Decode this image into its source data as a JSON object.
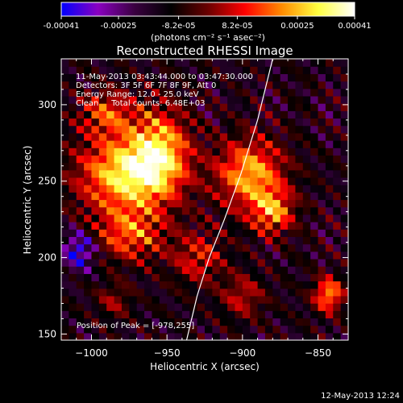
{
  "chart_data": {
    "type": "heatmap",
    "title": "Reconstructed RHESSI Image",
    "colorbar": {
      "min": -0.00041,
      "max": 0.00041,
      "tick_labels": [
        "-0.00041",
        "-0.00025",
        "-8.2e-05",
        "8.2e-05",
        "0.00025",
        "0.00041"
      ],
      "tick_values": [
        -0.00041,
        -0.00025,
        -8.2e-05,
        8.2e-05,
        0.00025,
        0.00041
      ],
      "units_label": "(photons cm⁻² s⁻¹ asec⁻²)",
      "colormap": [
        "#0000ff",
        "#8a00c0",
        "#3a0040",
        "#000000",
        "#6a0000",
        "#ff0000",
        "#ff8a00",
        "#ffff40",
        "#ffffff"
      ]
    },
    "annotations": [
      "11-May-2013 03:43:44.000 to 03:47:30.000",
      "Detectors: 3F 5F 6F 7F 8F 9F, Att 0",
      "Energy Range: 12.0 - 25.0 keV",
      "Clean     Total counts: 6.48E+03"
    ],
    "peak_label": "Position of Peak = [-978,255]",
    "xlabel": "Heliocentric X (arcsec)",
    "ylabel": "Heliocentric Y (arcsec)",
    "xlim": [
      -1020,
      -830
    ],
    "ylim": [
      146,
      330
    ],
    "xticks": [
      -1000,
      -950,
      -900,
      -850
    ],
    "yticks": [
      150,
      200,
      250,
      300
    ],
    "grid": false,
    "limb_line": {
      "color": "#ffffff",
      "points": [
        [
          -937,
          146
        ],
        [
          -930,
          175
        ],
        [
          -922,
          200
        ],
        [
          -912,
          225
        ],
        [
          -901,
          255
        ],
        [
          -890,
          290
        ],
        [
          -880,
          330
        ]
      ]
    },
    "sources": [
      {
        "x": -978,
        "y": 255,
        "amp": 0.00041,
        "sx": 22,
        "sy": 18
      },
      {
        "x": -955,
        "y": 270,
        "amp": 0.00034,
        "sx": 14,
        "sy": 20
      },
      {
        "x": -990,
        "y": 295,
        "amp": 0.00024,
        "sx": 12,
        "sy": 10
      },
      {
        "x": -895,
        "y": 255,
        "amp": 0.00036,
        "sx": 16,
        "sy": 16
      },
      {
        "x": -880,
        "y": 230,
        "amp": 0.0003,
        "sx": 10,
        "sy": 10
      },
      {
        "x": -975,
        "y": 215,
        "amp": 0.00026,
        "sx": 16,
        "sy": 12
      },
      {
        "x": -930,
        "y": 200,
        "amp": 0.0002,
        "sx": 12,
        "sy": 12
      },
      {
        "x": -843,
        "y": 176,
        "amp": 0.00034,
        "sx": 7,
        "sy": 8
      },
      {
        "x": -900,
        "y": 175,
        "amp": 0.00018,
        "sx": 10,
        "sy": 10
      },
      {
        "x": -1008,
        "y": 205,
        "amp": -0.00026,
        "sx": 8,
        "sy": 9
      },
      {
        "x": -985,
        "y": 172,
        "amp": 0.00014,
        "sx": 8,
        "sy": 8
      }
    ]
  },
  "footer": {
    "timestamp": "12-May-2013 12:24"
  }
}
